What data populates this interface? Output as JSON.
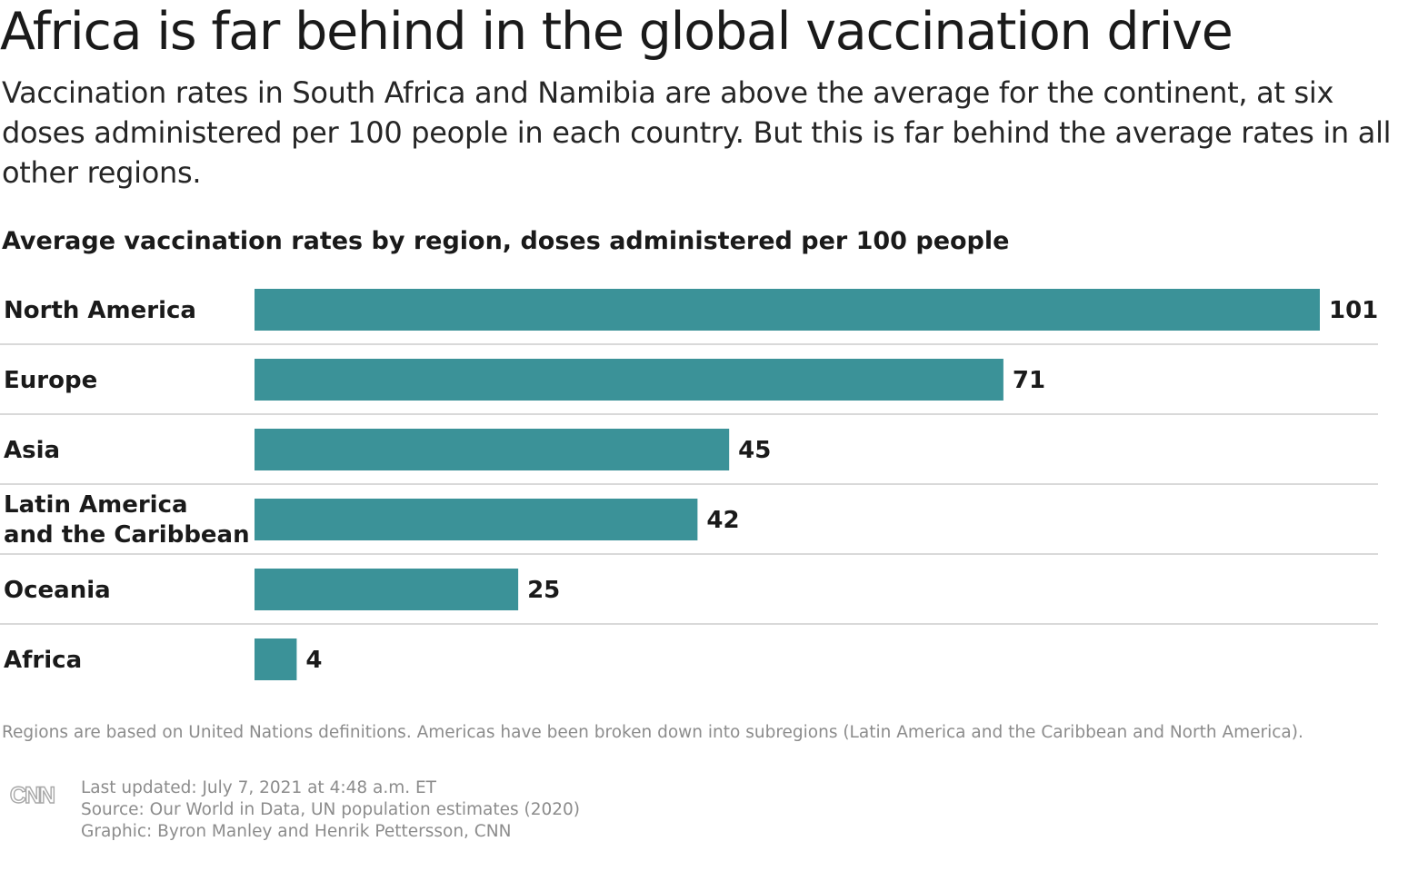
{
  "title": "Africa is far behind in the global vaccination drive",
  "subtitle": "Vaccination rates in South Africa and Namibia are above the average for the continent, at six doses administered per 100 people in each country. But this is far behind the average rates in all other regions.",
  "chart_data": {
    "type": "bar",
    "orientation": "horizontal",
    "title": "Average vaccination rates by region, doses administered per 100 people",
    "categories": [
      [
        "North America"
      ],
      [
        "Europe"
      ],
      [
        "Asia"
      ],
      [
        "Latin America",
        "and the Caribbean"
      ],
      [
        "Oceania"
      ],
      [
        "Africa"
      ]
    ],
    "values": [
      101,
      71,
      45,
      42,
      25,
      4
    ],
    "value_labels": [
      "101",
      "71",
      "45",
      "42",
      "25",
      "4"
    ],
    "xlim": [
      0,
      101
    ],
    "bar_color": "#3b9298",
    "separator_color": "#d9d9d9",
    "grid": false,
    "legend": false
  },
  "note": "Regions are based on United Nations definitions. Americas have been broken down into subregions (Latin America and the Caribbean and North America).",
  "credits": {
    "logo": "CNN",
    "updated": "Last updated: July 7, 2021 at 4:48 a.m. ET",
    "source": "Source: Our World in Data, UN population estimates (2020)",
    "graphic": "Graphic: Byron Manley and Henrik Pettersson, CNN"
  }
}
